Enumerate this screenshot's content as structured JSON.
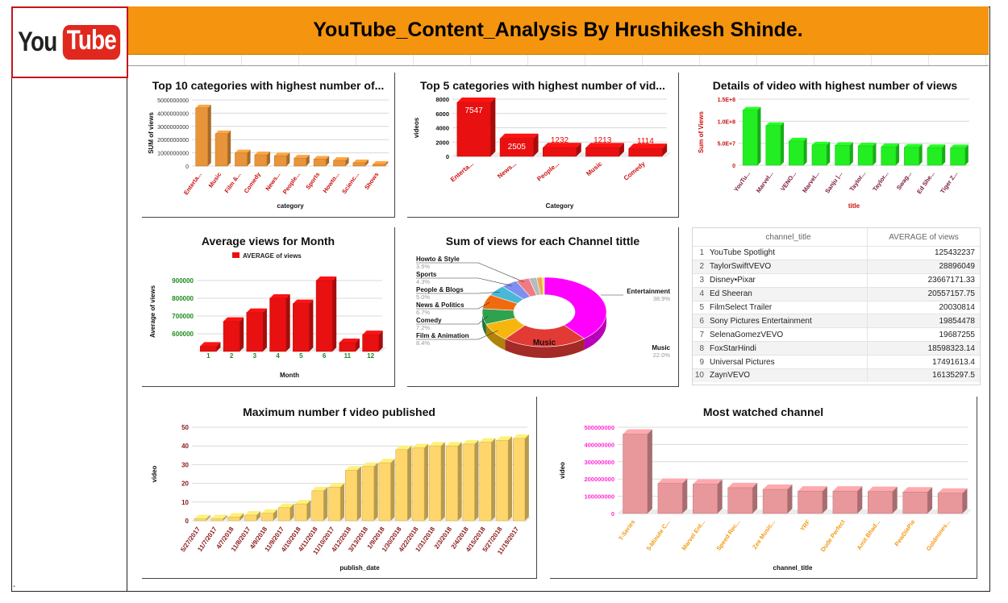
{
  "header": {
    "title": "YouTube_Content_Analysis By Hrushikesh Shinde."
  },
  "logo": {
    "part1": "You",
    "part2": "Tube"
  },
  "footer_mark": "-",
  "charts": {
    "top10": {
      "title": "Top 10 categories with highest number of...",
      "chart_data": {
        "type": "bar",
        "title": "Top 10 categories with highest number of...",
        "xlabel": "category",
        "ylabel": "SUM of views",
        "categories": [
          "Enterta...",
          "Music",
          "Film &...",
          "Comedy",
          "News...",
          "People...",
          "Sports",
          "Howto...",
          "Scienc...",
          "Shows"
        ],
        "values": [
          4400000000,
          2450000000,
          1000000000,
          850000000,
          780000000,
          600000000,
          520000000,
          430000000,
          250000000,
          130000000
        ],
        "ylim": [
          0,
          5000000000
        ],
        "yticks": [
          "0",
          "1000000000",
          "2000000000",
          "3000000000",
          "4000000000",
          "5000000000"
        ],
        "color": "#e8943a"
      }
    },
    "top5": {
      "title": "Top 5 categories with highest number of vid...",
      "chart_data": {
        "type": "bar",
        "title": "Top 5 categories with highest number of vid...",
        "xlabel": "Category",
        "ylabel": "videos",
        "categories": [
          "Enterta...",
          "News...",
          "People...",
          "Music",
          "Comedy"
        ],
        "values": [
          7547,
          2505,
          1232,
          1213,
          1114
        ],
        "data_labels": [
          "7547",
          "2505",
          "1232",
          "1213",
          "1114"
        ],
        "ylim": [
          0,
          8000
        ],
        "yticks": [
          "0",
          "2000",
          "4000",
          "6000",
          "8000"
        ],
        "color": "#e81010"
      }
    },
    "details": {
      "title": "Details of video with highest number of views",
      "chart_data": {
        "type": "bar",
        "title": "Details of video with highest number of views",
        "xlabel": "title",
        "ylabel": "Sum of Views",
        "categories": [
          "YouTu...",
          "Marvel...",
          "VENO...",
          "Marvel...",
          "Sanju |...",
          "Taylor...",
          "Taylor...",
          "Swag...",
          "Ed She...",
          "Tiger Z..."
        ],
        "values": [
          125000000,
          90000000,
          55000000,
          46000000,
          45000000,
          44000000,
          42000000,
          41000000,
          40000000,
          39500000
        ],
        "ylim": [
          0,
          150000000
        ],
        "yticks": [
          "0",
          "5.0E+7",
          "1.0E+8",
          "1.5E+8"
        ],
        "color": "#22ee22"
      }
    },
    "avgmonth": {
      "title": "Average  views for Month",
      "chart_data": {
        "type": "bar",
        "title": "Average  views for Month",
        "xlabel": "Month",
        "ylabel": "Average of views",
        "legend": "AVERAGE of views",
        "categories": [
          "1",
          "2",
          "3",
          "4",
          "5",
          "6",
          "11",
          "12"
        ],
        "values": [
          530000,
          670000,
          720000,
          800000,
          770000,
          900000,
          550000,
          595000
        ],
        "ylim": [
          500000,
          950000
        ],
        "yticks": [
          "600000",
          "700000",
          "800000",
          "900000"
        ],
        "color": "#e81010"
      }
    },
    "pie": {
      "title": "Sum of views for each Channel tittle",
      "chart_data": {
        "type": "pie",
        "title": "Sum of views for each Channel tittle",
        "slices": [
          {
            "label": "Entertainment",
            "pct": "38.9%",
            "value": 38.9,
            "color": "#ff00ff"
          },
          {
            "label": "Music",
            "pct": "22.0%",
            "value": 22.0,
            "color": "#e23b35"
          },
          {
            "label": "Film & Animation",
            "pct": "8.4%",
            "value": 8.4,
            "color": "#f6b60e"
          },
          {
            "label": "Comedy",
            "pct": "7.2%",
            "value": 7.2,
            "color": "#2ea24e"
          },
          {
            "label": "News & Politics",
            "pct": "6.7%",
            "value": 6.7,
            "color": "#f26a0f"
          },
          {
            "label": "People & Blogs",
            "pct": "5.0%",
            "value": 5.0,
            "color": "#47b9d6"
          },
          {
            "label": "Sports",
            "pct": "4.3%",
            "value": 4.3,
            "color": "#7d8fef"
          },
          {
            "label": "Howto & Style",
            "pct": "3.5%",
            "value": 3.5,
            "color": "#f07b83"
          },
          {
            "label": "",
            "pct": "",
            "value": 2.0,
            "color": "#b5bbc0"
          },
          {
            "label": "",
            "pct": "",
            "value": 1.5,
            "color": "#f0a64e"
          },
          {
            "label": "",
            "pct": "",
            "value": 0.5,
            "color": "#e3e34a"
          }
        ]
      }
    },
    "published": {
      "title": "Maximum number f video published",
      "chart_data": {
        "type": "bar",
        "title": "Maximum number f video published",
        "xlabel": "publish_date",
        "ylabel": "video",
        "categories": [
          "5/27/2017",
          "11/7/2017",
          "4/7/2018",
          "11/8/2017",
          "4/9/2018",
          "11/9/2017",
          "4/10/2018",
          "4/11/2018",
          "11/10/2017",
          "4/12/2018",
          "3/13/2018",
          "1/9/2018",
          "1/30/2018",
          "4/22/2018",
          "1/31/2018",
          "2/3/2018",
          "2/4/2018",
          "4/15/2018",
          "5/27/2018",
          "11/19/2017"
        ],
        "values": [
          1,
          1,
          2,
          3,
          4,
          7,
          9,
          16,
          18,
          27,
          29,
          31,
          38,
          39,
          40,
          40,
          41,
          42,
          43,
          44
        ],
        "ylim": [
          0,
          50
        ],
        "yticks": [
          "0",
          "10",
          "20",
          "30",
          "40",
          "50"
        ],
        "color": "#ffd66b"
      }
    },
    "watched": {
      "title": "Most watched channel",
      "chart_data": {
        "type": "bar",
        "title": "Most watched channel",
        "xlabel": "channel_title",
        "ylabel": "video",
        "categories": [
          "T-Series",
          "5-Minute C...",
          "Marvel Ent...",
          "Speed Rec...",
          "Zee Music...",
          "YRF",
          "Dude Perfect",
          "Amit Bhad...",
          "PewDiePie",
          "Goldmines..."
        ],
        "values": [
          460000000,
          175000000,
          170000000,
          150000000,
          140000000,
          130000000,
          130000000,
          128000000,
          125000000,
          118000000
        ],
        "ylim": [
          0,
          500000000
        ],
        "yticks": [
          "0",
          "100000000",
          "200000000",
          "300000000",
          "400000000",
          "500000000"
        ],
        "color": "#e8979b"
      }
    }
  },
  "table": {
    "headers": [
      "channel_title",
      "AVERAGE of views"
    ],
    "rows": [
      {
        "n": "1",
        "channel": "YouTube Spotlight",
        "avg": "125432237"
      },
      {
        "n": "2",
        "channel": "TaylorSwiftVEVO",
        "avg": "28896049"
      },
      {
        "n": "3",
        "channel": "Disney•Pixar",
        "avg": "23667171.33"
      },
      {
        "n": "4",
        "channel": "Ed Sheeran",
        "avg": "20557157.75"
      },
      {
        "n": "5",
        "channel": "FilmSelect Trailer",
        "avg": "20030814"
      },
      {
        "n": "6",
        "channel": "Sony Pictures Entertainment",
        "avg": "19854478"
      },
      {
        "n": "7",
        "channel": "SelenaGomezVEVO",
        "avg": "19687255"
      },
      {
        "n": "8",
        "channel": "FoxStarHindi",
        "avg": "18598323.14"
      },
      {
        "n": "9",
        "channel": "Universal Pictures",
        "avg": "17491613.4"
      },
      {
        "n": "10",
        "channel": "ZaynVEVO",
        "avg": "16135297.5"
      }
    ]
  }
}
